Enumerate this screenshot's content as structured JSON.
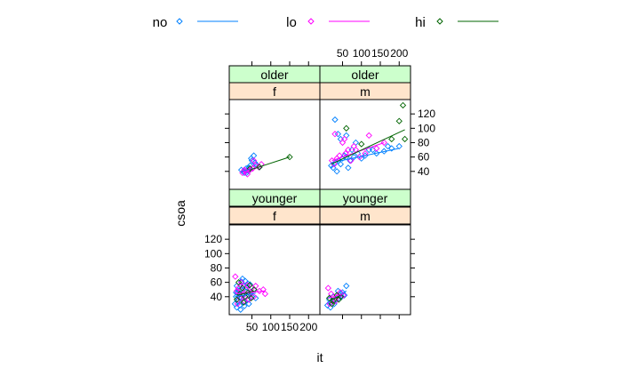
{
  "chart_data": {
    "type": "scatter",
    "title": "",
    "xlabel": "it",
    "ylabel": "csoa",
    "xlim": [
      -10,
      230
    ],
    "ylim": [
      15,
      140
    ],
    "x_ticks": [
      50,
      100,
      150,
      200
    ],
    "y_ticks": [
      40,
      60,
      80,
      100,
      120
    ],
    "grid": false,
    "legend_position": "top",
    "strip_colors": {
      "sex": "#ffe5cc",
      "age": "#ccffcc"
    },
    "legend": [
      {
        "name": "no",
        "color": "#0080ff",
        "marker": "diamond"
      },
      {
        "name": "lo",
        "color": "#ff00ff",
        "marker": "diamond"
      },
      {
        "name": "hi",
        "color": "#006400",
        "marker": "diamond"
      }
    ],
    "panels": [
      {
        "row": "top",
        "col": "left",
        "strips": {
          "age": "older",
          "sex": "f"
        },
        "series": [
          {
            "name": "no",
            "x": [
              22,
              28,
              30,
              35,
              40,
              45,
              50,
              55,
              60,
              48,
              42,
              36,
              70,
              58
            ],
            "y": [
              42,
              40,
              38,
              44,
              41,
              48,
              55,
              62,
              50,
              58,
              45,
              38,
              46,
              52
            ]
          },
          {
            "name": "lo",
            "x": [
              25,
              32,
              38,
              45,
              52,
              60,
              68,
              75,
              55,
              30
            ],
            "y": [
              38,
              40,
              36,
              42,
              44,
              48,
              46,
              50,
              55,
              42
            ]
          },
          {
            "name": "hi",
            "x": [
              45,
              70,
              150
            ],
            "y": [
              44,
              46,
              60
            ]
          }
        ],
        "fit_lines": [
          {
            "name": "no",
            "x": [
              22,
              70
            ],
            "y": [
              40,
              46
            ]
          },
          {
            "name": "lo",
            "x": [
              25,
              75
            ],
            "y": [
              39,
              47
            ]
          },
          {
            "name": "hi",
            "x": [
              45,
              150
            ],
            "y": [
              42,
              60
            ]
          }
        ]
      },
      {
        "row": "top",
        "col": "right",
        "strips": {
          "age": "older",
          "sex": "m"
        },
        "series": [
          {
            "name": "no",
            "x": [
              20,
              25,
              30,
              35,
              40,
              45,
              50,
              55,
              60,
              65,
              70,
              75,
              80,
              90,
              100,
              110,
              120,
              140,
              160,
              180,
              200,
              30,
              45,
              38,
              60,
              85,
              130,
              170
            ],
            "y": [
              48,
              45,
              52,
              40,
              55,
              50,
              58,
              62,
              60,
              45,
              55,
              70,
              60,
              65,
              58,
              62,
              70,
              65,
              68,
              72,
              75,
              112,
              85,
              92,
              90,
              80,
              70,
              75
            ]
          },
          {
            "name": "lo",
            "x": [
              22,
              28,
              35,
              42,
              50,
              58,
              65,
              72,
              80,
              95,
              110,
              120,
              140,
              160,
              30,
              55,
              85
            ],
            "y": [
              55,
              50,
              58,
              62,
              80,
              65,
              70,
              55,
              75,
              60,
              65,
              90,
              72,
              80,
              92,
              85,
              70
            ]
          },
          {
            "name": "hi",
            "x": [
              60,
              100,
              180,
              200,
              210,
              215
            ],
            "y": [
              100,
              78,
              85,
              110,
              132,
              85
            ]
          }
        ],
        "fit_lines": [
          {
            "name": "no",
            "x": [
              20,
              200
            ],
            "y": [
              52,
              72
            ]
          },
          {
            "name": "lo",
            "x": [
              22,
              160
            ],
            "y": [
              55,
              80
            ]
          },
          {
            "name": "hi",
            "x": [
              20,
              215
            ],
            "y": [
              50,
              98
            ]
          }
        ]
      },
      {
        "row": "bottom",
        "col": "left",
        "strips": {
          "age": "younger",
          "sex": "f"
        },
        "series": [
          {
            "name": "no",
            "x": [
              5,
              8,
              10,
              12,
              15,
              18,
              20,
              22,
              25,
              28,
              30,
              32,
              35,
              38,
              40,
              42,
              45,
              50,
              55,
              60,
              10,
              15,
              20,
              25,
              30,
              35,
              40,
              45,
              12,
              22,
              8,
              18
            ],
            "y": [
              30,
              40,
              25,
              45,
              35,
              28,
              50,
              38,
              42,
              55,
              33,
              62,
              47,
              36,
              58,
              30,
              44,
              40,
              50,
              38,
              55,
              48,
              22,
              65,
              27,
              53,
              43,
              57,
              34,
              61,
              46,
              39
            ]
          },
          {
            "name": "lo",
            "x": [
              6,
              10,
              14,
              18,
              22,
              26,
              30,
              34,
              38,
              42,
              46,
              50,
              55,
              60,
              70,
              80,
              85,
              12,
              20,
              28
            ],
            "y": [
              68,
              48,
              52,
              38,
              60,
              44,
              34,
              50,
              56,
              36,
              46,
              52,
              40,
              55,
              48,
              50,
              44,
              30,
              56,
              42
            ]
          },
          {
            "name": "hi",
            "x": [
              10,
              18,
              25,
              32,
              40,
              48,
              56,
              15,
              28,
              44
            ],
            "y": [
              36,
              44,
              52,
              40,
              46,
              38,
              50,
              60,
              32,
              56
            ]
          }
        ],
        "fit_lines": [
          {
            "name": "no",
            "x": [
              5,
              60
            ],
            "y": [
              40,
              45
            ]
          },
          {
            "name": "lo",
            "x": [
              6,
              85
            ],
            "y": [
              44,
              48
            ]
          },
          {
            "name": "hi",
            "x": [
              10,
              56
            ],
            "y": [
              42,
              48
            ]
          }
        ]
      },
      {
        "row": "bottom",
        "col": "right",
        "strips": {
          "age": "younger",
          "sex": "m"
        },
        "series": [
          {
            "name": "no",
            "x": [
              10,
              15,
              20,
              25,
              30,
              35,
              40,
              45,
              50,
              55,
              60,
              18,
              28,
              38,
              48
            ],
            "y": [
              28,
              36,
              32,
              40,
              35,
              42,
              38,
              44,
              46,
              42,
              55,
              25,
              30,
              48,
              40
            ]
          },
          {
            "name": "lo",
            "x": [
              12,
              20,
              28,
              36,
              44,
              52,
              16,
              32
            ],
            "y": [
              52,
              44,
              36,
              40,
              46,
              42,
              30,
              34
            ]
          },
          {
            "name": "hi",
            "x": [
              15,
              25,
              35,
              45,
              22,
              40
            ],
            "y": [
              38,
              34,
              42,
              40,
              30,
              36
            ]
          }
        ],
        "fit_lines": [
          {
            "name": "no",
            "x": [
              10,
              60
            ],
            "y": [
              32,
              48
            ]
          },
          {
            "name": "lo",
            "x": [
              12,
              52
            ],
            "y": [
              38,
              44
            ]
          },
          {
            "name": "hi",
            "x": [
              15,
              45
            ],
            "y": [
              34,
              42
            ]
          }
        ]
      }
    ]
  }
}
